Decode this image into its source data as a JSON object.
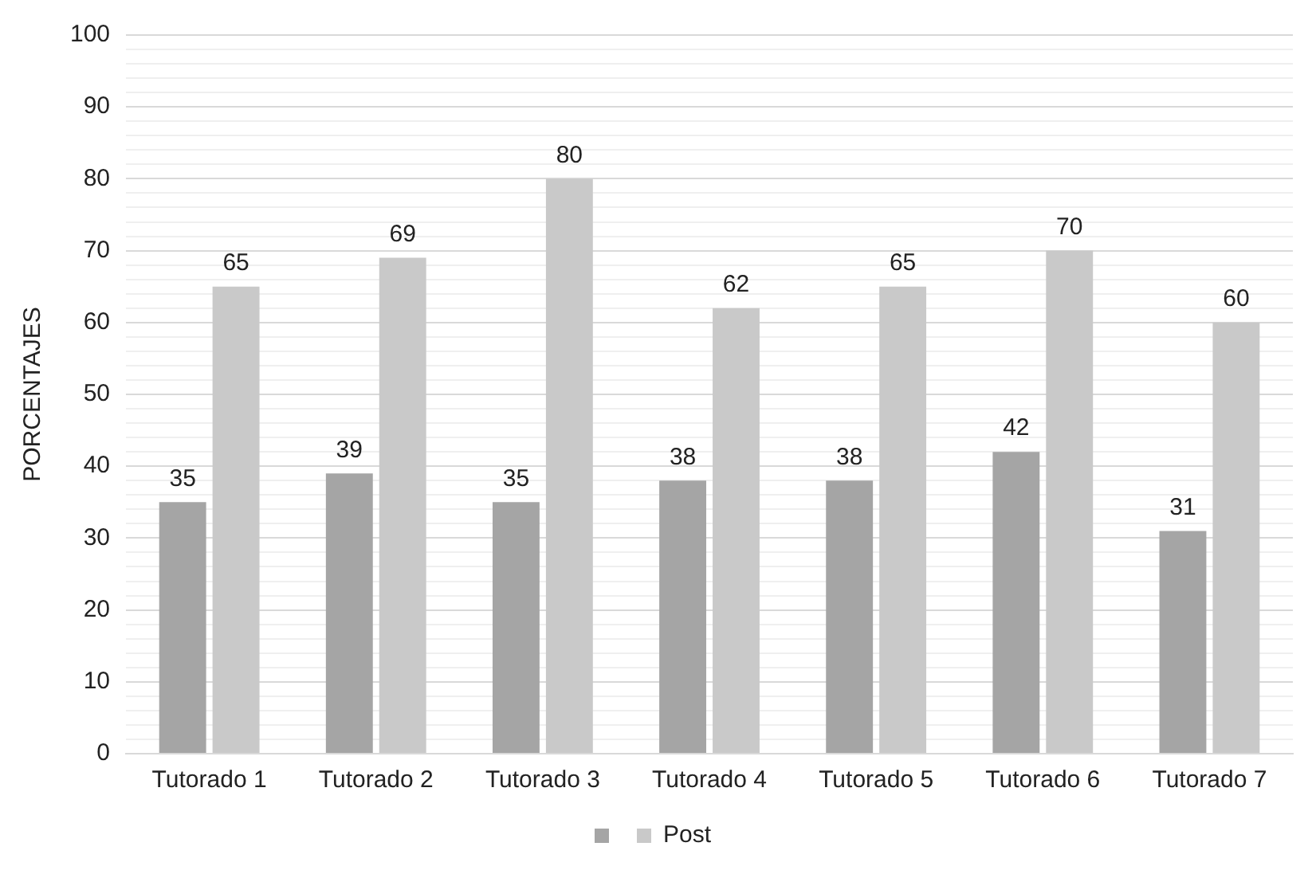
{
  "chart_data": {
    "type": "bar",
    "ylabel": "PORCENTAJES",
    "categories": [
      "Tutorado 1",
      "Tutorado 2",
      "Tutorado 3",
      "Tutorado 4",
      "Tutorado 5",
      "Tutorado 6",
      "Tutorado 7"
    ],
    "series": [
      {
        "color": "#a5a5a5",
        "values": [
          35,
          39,
          35,
          38,
          38,
          42,
          31
        ]
      },
      {
        "name": "Post",
        "color": "#c9c9c9",
        "values": [
          65,
          69,
          80,
          62,
          65,
          70,
          60
        ]
      }
    ],
    "ylim": [
      0,
      100
    ],
    "yticks": [
      0,
      {
        "value": 2,
        "label": null
      },
      {
        "value": 4,
        "label": null
      },
      {
        "value": 6,
        "label": null
      },
      {
        "value": 8,
        "label": null
      },
      10,
      {
        "value": 12,
        "label": null
      },
      {
        "value": 14,
        "label": null
      },
      {
        "value": 16,
        "label": null
      },
      {
        "value": 18,
        "label": null
      },
      20,
      {
        "value": 22,
        "label": null
      },
      {
        "value": 24,
        "label": null
      },
      {
        "value": 26,
        "label": null
      },
      {
        "value": 28,
        "label": null
      },
      30,
      {
        "value": 32,
        "label": null
      },
      {
        "value": 34,
        "label": null
      },
      {
        "value": 36,
        "label": null
      },
      {
        "value": 38,
        "label": null
      },
      40,
      {
        "value": 42,
        "label": null
      },
      {
        "value": 44,
        "label": null
      },
      {
        "value": 46,
        "label": null
      },
      {
        "value": 48,
        "label": null
      },
      50,
      {
        "value": 52,
        "label": null
      },
      {
        "value": 54,
        "label": null
      },
      {
        "value": 56,
        "label": null
      },
      {
        "value": 58,
        "label": null
      },
      60,
      {
        "value": 62,
        "label": null
      },
      {
        "value": 64,
        "label": null
      },
      {
        "value": 66,
        "label": null
      },
      {
        "value": 68,
        "label": null
      },
      70,
      {
        "value": 72,
        "label": null
      },
      {
        "value": 74,
        "label": null
      },
      {
        "value": 76,
        "label": null
      },
      {
        "value": 78,
        "label": null
      },
      80,
      {
        "value": 82,
        "label": null
      },
      {
        "value": 84,
        "label": null
      },
      {
        "value": 86,
        "label": null
      },
      {
        "value": 88,
        "label": null
      },
      90,
      {
        "value": 92,
        "label": null
      },
      {
        "value": 94,
        "label": null
      },
      {
        "value": 96,
        "label": null
      },
      {
        "value": 98,
        "label": null
      },
      100
    ],
    "grid": "y",
    "legend": "bottom",
    "data_labels": true
  }
}
